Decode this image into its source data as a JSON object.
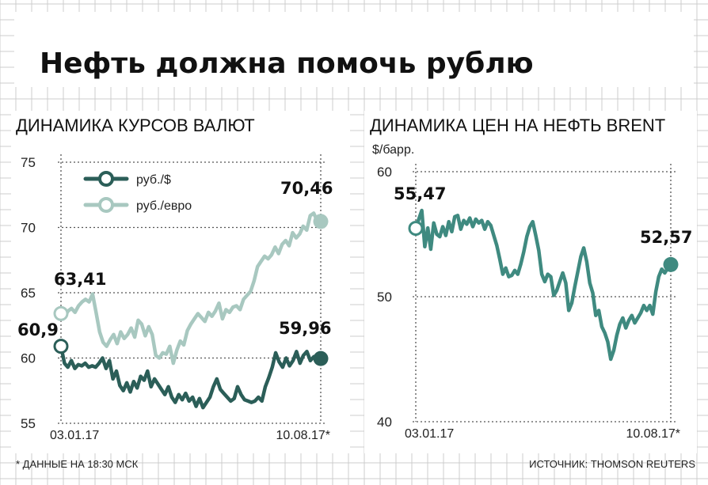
{
  "title": "Нефть должна помочь рублю",
  "footnote": "* ДАННЫЕ НА 18:30 МСК",
  "source": "ИСТОЧНИК: THOMSON REUTERS",
  "colors": {
    "rub_usd": "#2b5e58",
    "rub_eur": "#a8c8c0",
    "brent": "#3f8a80",
    "grid": "#cccccc",
    "dotted": "#555555"
  },
  "chart_data": [
    {
      "type": "line",
      "title": "ДИНАМИКА КУРСОВ ВАЛЮТ",
      "xlabel": "",
      "ylabel": "",
      "ylim": [
        55,
        75
      ],
      "yticks": [
        "55",
        "60",
        "65",
        "70",
        "75"
      ],
      "x_start_label": "03.01.17",
      "x_end_label": "10.08.17*",
      "legend_position": "top-left",
      "series": [
        {
          "name": "руб./$",
          "start_label": "60,9",
          "end_label": "59,96",
          "values": [
            60.9,
            59.6,
            59.3,
            59.8,
            59.2,
            59.5,
            59.4,
            59.6,
            59.3,
            59.4,
            59.3,
            59.6,
            60.0,
            59.2,
            59.8,
            58.4,
            59.0,
            57.9,
            57.5,
            58.1,
            57.4,
            58.2,
            57.7,
            58.6,
            58.3,
            59.0,
            57.8,
            58.4,
            58.0,
            57.6,
            57.2,
            57.8,
            57.0,
            56.6,
            57.2,
            56.8,
            57.3,
            56.7,
            57.0,
            56.3,
            56.9,
            56.2,
            56.6,
            57.0,
            57.8,
            58.4,
            57.6,
            57.3,
            57.0,
            56.7,
            56.9,
            57.8,
            57.2,
            56.8,
            56.7,
            56.6,
            56.7,
            57.0,
            56.7,
            57.8,
            58.5,
            59.3,
            60.4,
            59.7,
            59.3,
            60.0,
            59.4,
            59.8,
            60.5,
            59.6,
            60.2,
            60.5,
            59.8,
            60.1,
            59.7,
            59.96
          ]
        },
        {
          "name": "руб./евро",
          "start_label": "63,41",
          "end_label": "70,46",
          "values": [
            63.41,
            63.1,
            63.6,
            63.8,
            63.5,
            64.0,
            64.3,
            64.5,
            64.3,
            64.9,
            63.5,
            62.0,
            61.2,
            60.9,
            61.4,
            61.8,
            61.1,
            62.0,
            61.5,
            61.8,
            62.3,
            61.6,
            62.9,
            62.6,
            61.7,
            62.4,
            61.8,
            60.2,
            60.0,
            60.4,
            60.3,
            60.9,
            59.6,
            60.6,
            61.3,
            61.0,
            62.1,
            62.6,
            63.0,
            63.4,
            63.1,
            62.8,
            63.5,
            63.2,
            63.6,
            64.2,
            63.0,
            63.7,
            63.5,
            63.9,
            64.0,
            63.7,
            64.5,
            64.8,
            65.1,
            65.9,
            67.0,
            67.4,
            67.8,
            67.6,
            67.9,
            68.5,
            68.0,
            68.7,
            69.0,
            68.6,
            69.6,
            69.2,
            69.5,
            70.1,
            69.8,
            70.9,
            71.1,
            70.5,
            70.46
          ]
        }
      ]
    },
    {
      "type": "line",
      "title": "ДИНАМИКА ЦЕН НА НЕФТЬ BRENT",
      "xlabel": "",
      "ylabel": "$/барр.",
      "ylim": [
        40,
        60
      ],
      "yticks": [
        "40",
        "50",
        "60"
      ],
      "x_start_label": "03.01.17",
      "x_end_label": "10.08.17*",
      "series": [
        {
          "name": "Brent",
          "start_label": "55,47",
          "end_label": "52,57",
          "values": [
            55.47,
            56.2,
            56.9,
            54.0,
            55.5,
            53.8,
            55.9,
            55.0,
            54.8,
            55.6,
            54.9,
            56.0,
            55.2,
            56.4,
            56.5,
            55.4,
            56.1,
            55.8,
            56.3,
            55.6,
            56.2,
            55.9,
            56.1,
            55.4,
            56.0,
            55.7,
            54.9,
            54.1,
            53.0,
            51.8,
            52.3,
            51.6,
            51.7,
            52.1,
            51.8,
            52.6,
            53.6,
            54.8,
            55.6,
            56.0,
            54.9,
            53.7,
            51.8,
            51.2,
            51.8,
            51.6,
            50.1,
            50.5,
            51.2,
            51.9,
            51.1,
            48.9,
            49.5,
            50.8,
            52.0,
            53.2,
            53.9,
            52.8,
            51.1,
            50.3,
            48.5,
            48.9,
            47.6,
            47.1,
            46.4,
            45.0,
            45.7,
            46.9,
            47.8,
            48.3,
            47.5,
            48.1,
            48.5,
            47.9,
            48.3,
            48.7,
            49.3,
            48.9,
            49.3,
            48.6,
            50.4,
            51.6,
            52.2,
            51.9,
            52.3,
            52.57
          ]
        }
      ]
    }
  ]
}
